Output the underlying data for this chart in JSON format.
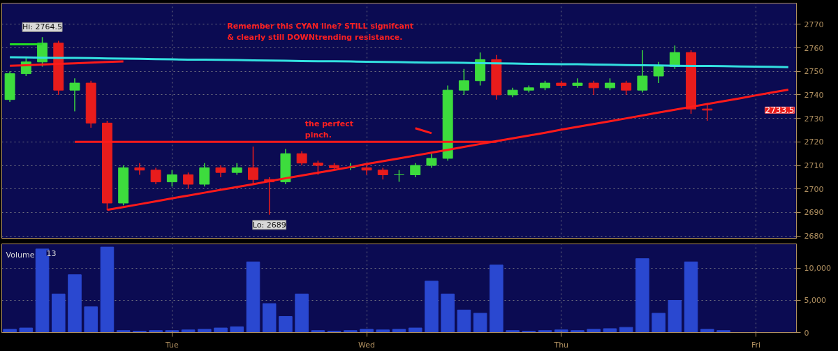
{
  "chart_data": [
    {
      "type": "candlestick",
      "categories": [
        null,
        null,
        null,
        null,
        null,
        null,
        null,
        null,
        null,
        null,
        null,
        null,
        null,
        null,
        null,
        null,
        null,
        null,
        null,
        null,
        null,
        null,
        null,
        null,
        null,
        null,
        null,
        null,
        null,
        null,
        null,
        null,
        null,
        null,
        null,
        null,
        null,
        null,
        null,
        null,
        null,
        null,
        null,
        null,
        null,
        null,
        null,
        null,
        null
      ],
      "ohlc": [
        [
          2738,
          2750,
          2737,
          2749
        ],
        [
          2749,
          2756,
          2748,
          2754
        ],
        [
          2754,
          2764.5,
          2752,
          2762
        ],
        [
          2762,
          2763,
          2740,
          2742
        ],
        [
          2742,
          2747,
          2733,
          2745
        ],
        [
          2745,
          2746,
          2726,
          2728
        ],
        [
          2728,
          2729,
          2691,
          2694
        ],
        [
          2694,
          2710,
          2693,
          2709
        ],
        [
          2709,
          2711,
          2706,
          2708
        ],
        [
          2708,
          2709,
          2702,
          2703
        ],
        [
          2703,
          2708,
          2701,
          2706
        ],
        [
          2706,
          2707,
          2700,
          2702
        ],
        [
          2702,
          2711,
          2701,
          2709
        ],
        [
          2709,
          2710,
          2705,
          2707
        ],
        [
          2707,
          2711,
          2706,
          2709
        ],
        [
          2709,
          2718,
          2702,
          2704
        ],
        [
          2704,
          2705,
          2689,
          2703
        ],
        [
          2703,
          2717,
          2702,
          2715
        ],
        [
          2715,
          2716,
          2710,
          2711
        ],
        [
          2711,
          2712,
          2706,
          2710
        ],
        [
          2710,
          2711,
          2708,
          2709
        ],
        [
          2709,
          2711,
          2708,
          2709
        ],
        [
          2709,
          2710,
          2706,
          2708
        ],
        [
          2708,
          2709,
          2704,
          2706
        ],
        [
          2706,
          2708,
          2703,
          2706
        ],
        [
          2706,
          2711,
          2705,
          2710
        ],
        [
          2710,
          2715,
          2709,
          2713
        ],
        [
          2713,
          2744,
          2712,
          2742
        ],
        [
          2742,
          2751,
          2740,
          2746
        ],
        [
          2746,
          2758,
          2744,
          2755
        ],
        [
          2755,
          2757,
          2738,
          2740
        ],
        [
          2740,
          2743,
          2739,
          2742
        ],
        [
          2742,
          2744,
          2741,
          2743
        ],
        [
          2743,
          2746,
          2742,
          2745
        ],
        [
          2745,
          2746,
          2743,
          2744
        ],
        [
          2744,
          2747,
          2743,
          2745
        ],
        [
          2745,
          2746,
          2740,
          2743
        ],
        [
          2743,
          2747,
          2742,
          2745
        ],
        [
          2745,
          2746,
          2740,
          2742
        ],
        [
          2742,
          2759,
          2741,
          2748
        ],
        [
          2748,
          2754,
          2745,
          2752
        ],
        [
          2752,
          2761,
          2751,
          2758
        ],
        [
          2758,
          2759,
          2732,
          2734
        ],
        [
          2734,
          2736,
          2729,
          2733.5
        ],
        null,
        null,
        null,
        null,
        null
      ],
      "colors": [
        "#3ddc3d",
        "#3ddc3d",
        "#3ddc3d",
        "#e81c1c",
        "#3ddc3d",
        "#e81c1c",
        "#e81c1c",
        "#3ddc3d",
        "#e81c1c",
        "#e81c1c",
        "#3ddc3d",
        "#e81c1c",
        "#3ddc3d",
        "#e81c1c",
        "#3ddc3d",
        "#e81c1c",
        "#e81c1c",
        "#3ddc3d",
        "#e81c1c",
        "#e81c1c",
        "#e81c1c",
        "#3ddc3d",
        "#e81c1c",
        "#e81c1c",
        "#3ddc3d",
        "#3ddc3d",
        "#3ddc3d",
        "#3ddc3d",
        "#3ddc3d",
        "#3ddc3d",
        "#e81c1c",
        "#3ddc3d",
        "#3ddc3d",
        "#3ddc3d",
        "#e81c1c",
        "#3ddc3d",
        "#e81c1c",
        "#3ddc3d",
        "#e81c1c",
        "#3ddc3d",
        "#3ddc3d",
        "#3ddc3d",
        "#e81c1c",
        "#e81c1c",
        null,
        null,
        null,
        null,
        null
      ],
      "series": [
        {
          "type": "line",
          "color": "#33e0e0",
          "values": [
            2756.0,
            2755.9,
            2755.8,
            2755.7,
            2755.7,
            2755.6,
            2755.5,
            2755.4,
            2755.3,
            2755.2,
            2755.1,
            2755.0,
            2755.0,
            2754.9,
            2754.8,
            2754.7,
            2754.6,
            2754.5,
            2754.4,
            2754.3,
            2754.3,
            2754.2,
            2754.1,
            2754.0,
            2753.9,
            2753.8,
            2753.7,
            2753.7,
            2753.6,
            2753.5,
            2753.4,
            2753.3,
            2753.2,
            2753.1,
            2753.0,
            2753.0,
            2752.9,
            2752.8,
            2752.7,
            2752.6,
            2752.5,
            2752.4,
            2752.3,
            2752.3,
            2752.2,
            2752.1,
            2752.0,
            2751.9,
            2751.8
          ]
        },
        {
          "type": "line",
          "color": "#ff1a1a",
          "values": [
            2752.4,
            2752.6,
            2752.9,
            2753.2,
            2753.4,
            2753.7,
            2754.0,
            2754.2,
            null,
            null,
            null,
            null,
            null,
            null,
            null,
            null,
            null,
            null,
            null,
            null,
            null,
            null,
            null,
            null,
            null,
            null,
            null,
            null,
            null,
            null,
            null,
            null,
            null,
            null,
            null,
            null,
            null,
            null,
            null,
            null,
            null,
            null,
            null,
            null,
            null,
            null,
            null,
            null,
            null
          ]
        },
        {
          "type": "line",
          "color": "#22dd22",
          "values": [
            2761.5,
            2761.5,
            2761.5,
            null,
            null,
            null,
            null,
            null,
            null,
            null,
            null,
            null,
            null,
            null,
            null,
            null,
            null,
            null,
            null,
            null,
            null,
            null,
            null,
            null,
            null,
            null,
            null,
            null,
            null,
            null,
            null,
            null,
            null,
            null,
            null,
            null,
            null,
            null,
            null,
            null,
            null,
            null,
            null,
            null,
            null,
            null,
            null,
            null,
            null
          ]
        },
        {
          "type": "line",
          "color": "#ff1a1a",
          "values": [
            null,
            null,
            null,
            null,
            2720,
            2720,
            2720,
            2720,
            2720,
            2720,
            2720,
            2720,
            2720,
            2720,
            2720,
            2720,
            2720,
            2720,
            2720,
            2720,
            2720,
            2720,
            2720,
            2720,
            2720,
            2720,
            2720,
            2720,
            2720,
            2720,
            2720,
            null,
            null,
            null,
            null,
            null,
            null,
            null,
            null,
            null,
            null,
            null,
            null,
            null,
            null,
            null,
            null,
            null,
            null
          ]
        },
        {
          "type": "line",
          "color": "#ff1a1a",
          "values": [
            null,
            null,
            null,
            null,
            null,
            null,
            2691.1,
            2692.3,
            2693.5,
            2694.7,
            2696.0,
            2697.2,
            2698.4,
            2699.6,
            2700.8,
            2702.0,
            2703.3,
            2704.5,
            2705.7,
            2706.9,
            2708.1,
            2709.3,
            2710.6,
            2711.8,
            2713.0,
            2714.2,
            2715.4,
            2716.6,
            2717.9,
            2719.1,
            2720.3,
            2721.5,
            2722.7,
            2723.9,
            2725.2,
            2726.4,
            2727.6,
            2728.8,
            2730.0,
            2731.2,
            2732.5,
            2733.7,
            2734.9,
            2736.1,
            2737.3,
            2738.5,
            2739.8,
            2741.0,
            2742.2
          ]
        },
        {
          "type": "line",
          "color": "#ff1a1a",
          "values": [
            null,
            null,
            null,
            null,
            null,
            null,
            null,
            null,
            null,
            null,
            null,
            null,
            null,
            null,
            null,
            null,
            null,
            null,
            null,
            null,
            null,
            null,
            null,
            null,
            null,
            2725.8,
            2723.7,
            null,
            null,
            null,
            null,
            null,
            null,
            null,
            null,
            null,
            null,
            null,
            null,
            null,
            null,
            null,
            null,
            null,
            null,
            null,
            null,
            null,
            null
          ]
        }
      ],
      "annotations": [
        {
          "text": "Hi: 2764.5",
          "y": 2764.5
        },
        {
          "text": "Lo: 2689",
          "y": 2689
        },
        "Remember this CYAN line? STILL signifcant\n& clearly still DOWNtrending resistance.",
        "the perfect\npinch.",
        "2733.5"
      ],
      "ylim": [
        2679,
        2779
      ],
      "yticks": [
        2680,
        2690,
        2700,
        2710,
        2720,
        2730,
        2740,
        2750,
        2760,
        2770
      ],
      "tick_labels": "y",
      "grid": true
    },
    {
      "type": "bar",
      "title": "Volume",
      "annotations": [
        "13"
      ],
      "color": "#2a48d0",
      "categories": [
        null,
        null,
        null,
        null,
        null,
        null,
        null,
        null,
        null,
        null,
        "Tue",
        null,
        null,
        null,
        null,
        null,
        null,
        null,
        null,
        null,
        null,
        null,
        "Wed",
        null,
        null,
        null,
        null,
        null,
        null,
        null,
        null,
        null,
        null,
        null,
        "Thu",
        null,
        null,
        null,
        null,
        null,
        null,
        null,
        null,
        null,
        null,
        null,
        "Fri",
        null,
        null
      ],
      "values": [
        500,
        700,
        13000,
        6000,
        9000,
        4000,
        13300,
        300,
        200,
        300,
        300,
        400,
        500,
        700,
        900,
        11000,
        4500,
        2500,
        6000,
        300,
        200,
        300,
        500,
        400,
        500,
        700,
        8000,
        6000,
        3500,
        3000,
        10500,
        300,
        200,
        300,
        400,
        300,
        500,
        600,
        800,
        11500,
        3000,
        5000,
        11000,
        500,
        300,
        null,
        null,
        null,
        null
      ],
      "ylim": [
        0,
        13800
      ],
      "yticks": [
        0,
        {
          "value": 5000,
          "label": "5,000"
        },
        {
          "value": 10000,
          "label": "10,000"
        }
      ],
      "grid": true
    }
  ]
}
